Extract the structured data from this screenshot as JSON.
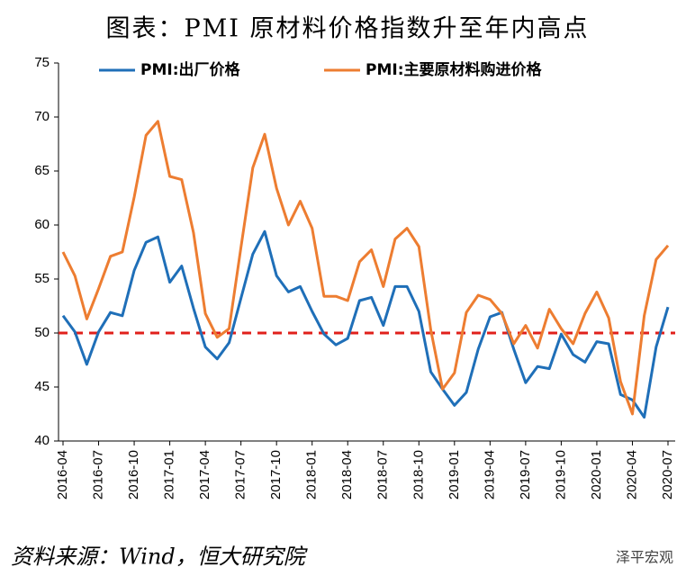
{
  "chart_data": {
    "type": "line",
    "title": "图表：PMI 原材料价格指数升至年内高点",
    "source": "资料来源：Wind，恒大研究院",
    "watermark": "泽平宏观",
    "categories": [
      "2016-04",
      null,
      null,
      "2016-07",
      null,
      null,
      "2016-10",
      null,
      null,
      "2017-01",
      null,
      null,
      "2017-04",
      null,
      null,
      "2017-07",
      null,
      null,
      "2017-10",
      null,
      null,
      "2018-01",
      null,
      null,
      "2018-04",
      null,
      null,
      "2018-07",
      null,
      null,
      "2018-10",
      null,
      null,
      "2019-01",
      null,
      null,
      "2019-04",
      null,
      null,
      "2019-07",
      null,
      null,
      "2019-10",
      null,
      null,
      "2020-01",
      null,
      null,
      "2020-04",
      null,
      null,
      "2020-07"
    ],
    "series": [
      {
        "name": "PMI:出厂价格",
        "color": "#1f6fb8",
        "values": [
          51.6,
          50.1,
          47.1,
          50.1,
          51.9,
          51.6,
          55.8,
          58.4,
          58.9,
          54.7,
          56.2,
          52.3,
          48.7,
          47.6,
          49.1,
          53.2,
          57.3,
          59.4,
          55.3,
          53.8,
          54.3,
          52.0,
          49.9,
          48.9,
          49.5,
          53.0,
          53.3,
          50.7,
          54.3,
          54.3,
          52.0,
          46.4,
          44.8,
          43.3,
          44.5,
          48.5,
          51.5,
          51.9,
          48.5,
          45.4,
          46.9,
          46.7,
          49.9,
          48.0,
          47.3,
          49.2,
          49.0,
          44.3,
          43.8,
          42.2,
          48.7,
          52.4
        ]
      },
      {
        "name": "PMI:主要原材料购进价格",
        "color": "#ed7d31",
        "values": [
          57.5,
          55.3,
          51.3,
          54.1,
          57.1,
          57.5,
          62.6,
          68.3,
          69.6,
          64.5,
          64.2,
          59.3,
          51.8,
          49.6,
          50.4,
          57.9,
          65.3,
          68.4,
          63.4,
          60.0,
          62.2,
          59.7,
          53.4,
          53.4,
          53.0,
          56.6,
          57.7,
          54.3,
          58.7,
          59.7,
          58.0,
          50.3,
          44.8,
          46.3,
          51.9,
          53.5,
          53.1,
          51.8,
          49.0,
          50.7,
          48.6,
          52.2,
          50.4,
          49.0,
          51.8,
          53.8,
          51.4,
          45.5,
          42.5,
          51.6,
          56.8,
          58.1
        ]
      }
    ],
    "reference_line": {
      "value": 50,
      "color": "#e0201b"
    },
    "ylim": [
      40,
      75
    ],
    "yticks": [
      40,
      45,
      50,
      55,
      60,
      65,
      70,
      75
    ],
    "grid": false,
    "legend": "top"
  }
}
